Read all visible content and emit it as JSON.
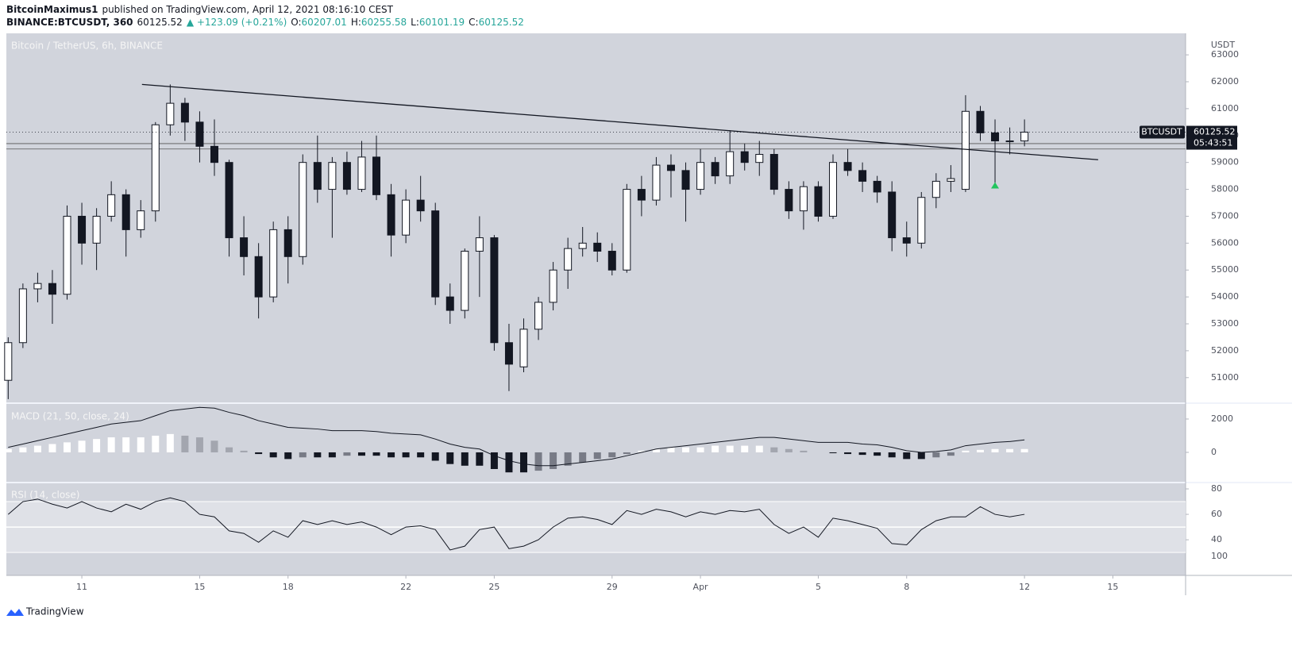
{
  "header": {
    "author": "BitcoinMaximus1",
    "published": "published on TradingView.com, April 12, 2021 08:16:10 CEST",
    "symbol": "BINANCE:BTCUSDT, 360",
    "price": "60125.52",
    "change": "▲ +123.09 (+0.21%)",
    "ohlc": [
      {
        "key": "O:",
        "value": "60207.01"
      },
      {
        "key": "H:",
        "value": "60255.58"
      },
      {
        "key": "L:",
        "value": "60101.19"
      },
      {
        "key": "C:",
        "value": "60125.52"
      }
    ]
  },
  "footer": {
    "brand": "TradingView"
  },
  "chart_data": [
    {
      "type": "candlestick",
      "title": "Bitcoin / TetherUS, 6h, BINANCE",
      "axis_unit": "USDT",
      "x": [
        "2021-03-08T12:00",
        "2021-03-09T00:00",
        "2021-03-09T12:00",
        "2021-03-10T00:00",
        "2021-03-10T12:00",
        "2021-03-11T00:00",
        "2021-03-11T12:00",
        "2021-03-12T00:00",
        "2021-03-12T12:00",
        "2021-03-13T00:00",
        "2021-03-13T12:00",
        "2021-03-14T00:00",
        "2021-03-14T12:00",
        "2021-03-15T00:00",
        "2021-03-15T12:00",
        "2021-03-16T00:00",
        "2021-03-16T12:00",
        "2021-03-17T00:00",
        "2021-03-17T12:00",
        "2021-03-18T00:00",
        "2021-03-18T12:00",
        "2021-03-19T00:00",
        "2021-03-19T12:00",
        "2021-03-20T00:00",
        "2021-03-20T12:00",
        "2021-03-21T00:00",
        "2021-03-21T12:00",
        "2021-03-22T00:00",
        "2021-03-22T12:00",
        "2021-03-23T00:00",
        "2021-03-23T12:00",
        "2021-03-24T00:00",
        "2021-03-24T12:00",
        "2021-03-25T00:00",
        "2021-03-25T12:00",
        "2021-03-26T00:00",
        "2021-03-26T12:00",
        "2021-03-27T00:00",
        "2021-03-27T12:00",
        "2021-03-28T00:00",
        "2021-03-28T12:00",
        "2021-03-29T00:00",
        "2021-03-29T12:00",
        "2021-03-30T00:00",
        "2021-03-30T12:00",
        "2021-03-31T00:00",
        "2021-03-31T12:00",
        "2021-04-01T00:00",
        "2021-04-01T12:00",
        "2021-04-02T00:00",
        "2021-04-02T12:00",
        "2021-04-03T00:00",
        "2021-04-03T12:00",
        "2021-04-04T00:00",
        "2021-04-04T12:00",
        "2021-04-05T00:00",
        "2021-04-05T12:00",
        "2021-04-06T00:00",
        "2021-04-06T12:00",
        "2021-04-07T00:00",
        "2021-04-07T12:00",
        "2021-04-08T00:00",
        "2021-04-08T12:00",
        "2021-04-09T00:00",
        "2021-04-09T12:00",
        "2021-04-10T00:00",
        "2021-04-10T12:00",
        "2021-04-11T00:00",
        "2021-04-11T12:00",
        "2021-04-12T00:00"
      ],
      "open": [
        50900,
        52300,
        54300,
        54500,
        54100,
        57000,
        56000,
        57000,
        57800,
        56500,
        57200,
        60400,
        61200,
        60500,
        59600,
        59000,
        56200,
        55500,
        54000,
        56500,
        55500,
        59000,
        58000,
        59000,
        58000,
        59200,
        57800,
        56300,
        57600,
        57200,
        54000,
        53500,
        55700,
        56200,
        52300,
        51400,
        52800,
        53800,
        55000,
        55800,
        56000,
        55700,
        55000,
        58000,
        57600,
        58900,
        58700,
        58000,
        59000,
        58500,
        59400,
        59000,
        59300,
        58000,
        57200,
        58100,
        57000,
        59000,
        58700,
        58300,
        57900,
        56200,
        56000,
        57700,
        58300,
        58000,
        60900,
        60100,
        59800,
        59800
      ],
      "high": [
        52500,
        54500,
        54900,
        55000,
        57400,
        57500,
        57300,
        58300,
        58000,
        57600,
        60500,
        61900,
        61400,
        60900,
        60600,
        59100,
        57000,
        56000,
        56800,
        57000,
        59300,
        60000,
        59200,
        59400,
        59800,
        60000,
        58200,
        58000,
        58500,
        57500,
        54500,
        55800,
        57000,
        56300,
        53000,
        53200,
        54000,
        55300,
        56200,
        56600,
        56400,
        56000,
        58200,
        58500,
        59200,
        59300,
        59000,
        59500,
        59200,
        60200,
        59700,
        59800,
        59500,
        58300,
        58300,
        58300,
        59300,
        59500,
        59000,
        58500,
        58300,
        56800,
        57900,
        58600,
        58900,
        61500,
        61100,
        60600,
        60300,
        60600
      ],
      "low": [
        50200,
        52100,
        53800,
        53000,
        53900,
        55200,
        55000,
        56800,
        55500,
        56200,
        56800,
        60000,
        59800,
        59000,
        58500,
        55500,
        54800,
        53200,
        53800,
        54500,
        55200,
        57500,
        56200,
        57800,
        57900,
        57600,
        55500,
        56000,
        56800,
        53700,
        53000,
        53200,
        54000,
        52000,
        50500,
        51200,
        52400,
        53500,
        54300,
        55500,
        55300,
        54800,
        54900,
        57000,
        57400,
        57700,
        56800,
        57800,
        58200,
        58200,
        58700,
        58500,
        57800,
        56900,
        56500,
        56800,
        56900,
        58500,
        57900,
        57500,
        55700,
        55500,
        55800,
        57300,
        57900,
        57900,
        59800,
        58200,
        59300,
        59600
      ],
      "close": [
        52300,
        54300,
        54500,
        54100,
        57000,
        56000,
        57000,
        57800,
        56500,
        57200,
        60400,
        61200,
        60500,
        59600,
        59000,
        56200,
        55500,
        54000,
        56500,
        55500,
        59000,
        58000,
        59000,
        58000,
        59200,
        57800,
        56300,
        57600,
        57200,
        54000,
        53500,
        55700,
        56200,
        52300,
        51500,
        52800,
        53800,
        55000,
        55800,
        56000,
        55700,
        55000,
        58000,
        57600,
        58900,
        58700,
        58000,
        59000,
        58500,
        59400,
        59000,
        59300,
        58000,
        57200,
        58100,
        57000,
        59000,
        58700,
        58300,
        57900,
        56200,
        56000,
        57700,
        58300,
        58400,
        60900,
        60100,
        59800,
        59800,
        60125.52
      ],
      "xlim": [
        "2021-03-08T10:30",
        "2021-04-17T11:15"
      ],
      "xticks": [
        {
          "value": "2021-03-11T00:00",
          "label": "11"
        },
        {
          "value": "2021-03-15T00:00",
          "label": "15"
        },
        {
          "value": "2021-03-18T00:00",
          "label": "18"
        },
        {
          "value": "2021-03-22T00:00",
          "label": "22"
        },
        {
          "value": "2021-03-25T00:00",
          "label": "25"
        },
        {
          "value": "2021-03-29T00:00",
          "label": "29"
        },
        {
          "value": "2021-04-01T00:00",
          "label": "Apr"
        },
        {
          "value": "2021-04-05T00:00",
          "label": "5"
        },
        {
          "value": "2021-04-08T00:00",
          "label": "8"
        },
        {
          "value": "2021-04-12T00:00",
          "label": "12"
        },
        {
          "value": "2021-04-15T00:00",
          "label": "15"
        }
      ],
      "ylim": [
        50050,
        63800
      ],
      "yticks": [
        51000,
        52000,
        53000,
        54000,
        55000,
        56000,
        57000,
        58000,
        59000,
        60000,
        61000,
        62000,
        63000
      ],
      "trendline": {
        "x": [
          "2021-03-13T01:00",
          "2021-04-14T12:00"
        ],
        "y": [
          61900,
          59100
        ]
      },
      "levels": [
        59700,
        59500
      ],
      "signal_marker": {
        "x": "2021-04-11T00:00",
        "y": 58150,
        "color": "#22c55e"
      },
      "last_price": {
        "symbol": "BTCUSDT",
        "countdown": "05:43:51",
        "value": 60125.52,
        "label": "60125.52"
      }
    },
    {
      "type": "macd",
      "title": "MACD (21, 50, close, 24)",
      "line": [
        300,
        500,
        700,
        900,
        1100,
        1300,
        1500,
        1700,
        1800,
        1900,
        2200,
        2500,
        2600,
        2700,
        2650,
        2400,
        2200,
        1900,
        1700,
        1500,
        1450,
        1400,
        1300,
        1300,
        1300,
        1250,
        1150,
        1100,
        1050,
        800,
        500,
        300,
        200,
        -200,
        -500,
        -700,
        -800,
        -800,
        -700,
        -600,
        -500,
        -400,
        -200,
        0,
        200,
        300,
        400,
        500,
        600,
        700,
        800,
        900,
        900,
        800,
        700,
        600,
        600,
        600,
        500,
        450,
        300,
        100,
        0,
        50,
        150,
        400,
        500,
        600,
        650,
        750
      ],
      "histogram": [
        200,
        300,
        400,
        500,
        600,
        700,
        800,
        900,
        900,
        900,
        1000,
        1100,
        1000,
        900,
        700,
        300,
        100,
        -100,
        -300,
        -400,
        -300,
        -300,
        -300,
        -200,
        -200,
        -200,
        -300,
        -300,
        -300,
        -500,
        -700,
        -800,
        -800,
        -1000,
        -1200,
        -1200,
        -1100,
        -1000,
        -800,
        -600,
        -400,
        -300,
        -100,
        100,
        200,
        300,
        300,
        300,
        400,
        400,
        400,
        400,
        300,
        200,
        100,
        0,
        -50,
        -100,
        -150,
        -200,
        -300,
        -400,
        -400,
        -300,
        -200,
        100,
        150,
        200,
        200,
        200
      ],
      "ylim": [
        -1810,
        2950
      ],
      "yticks": [
        0,
        2000
      ]
    },
    {
      "type": "rsi",
      "title": "RSI (14, close)",
      "values": [
        60,
        70,
        72,
        68,
        65,
        70,
        65,
        62,
        68,
        64,
        70,
        73,
        70,
        60,
        58,
        47,
        45,
        38,
        47,
        42,
        55,
        52,
        55,
        52,
        54,
        50,
        44,
        50,
        51,
        48,
        32,
        35,
        48,
        50,
        33,
        35,
        40,
        50,
        57,
        58,
        56,
        52,
        63,
        60,
        64,
        62,
        58,
        62,
        60,
        63,
        62,
        64,
        52,
        45,
        50,
        42,
        57,
        55,
        52,
        49,
        37,
        36,
        48,
        55,
        58,
        58,
        66,
        60,
        58,
        60
      ],
      "ylim": [
        12,
        85
      ],
      "yticks": [
        40,
        60,
        80
      ],
      "band": [
        30,
        70
      ],
      "midline": 50,
      "stray_label": "100"
    }
  ]
}
